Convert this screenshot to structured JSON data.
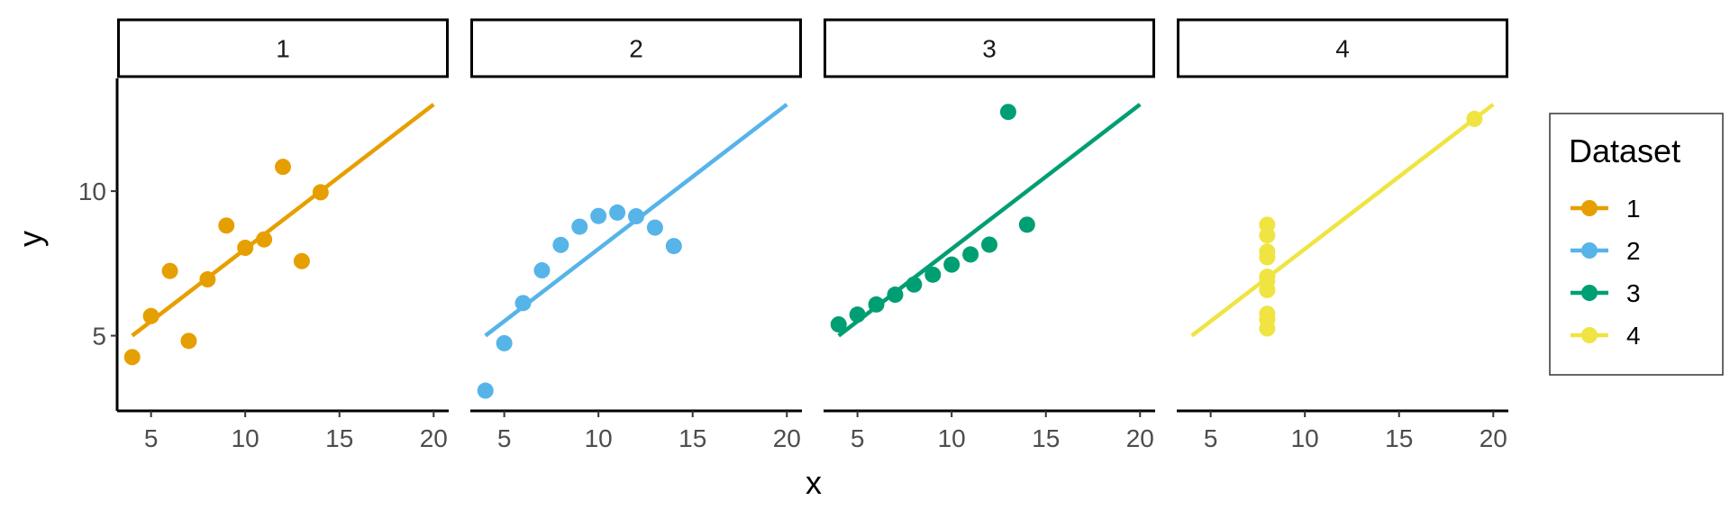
{
  "chart_data": {
    "type": "scatter",
    "layout": "facets",
    "facet_labels": [
      "1",
      "2",
      "3",
      "4"
    ],
    "xlabel": "x",
    "ylabel": "y",
    "xlim": [
      3.2,
      20.8
    ],
    "ylim": [
      2.4,
      13.9
    ],
    "x_ticks": [
      5,
      10,
      15,
      20
    ],
    "y_ticks": [
      5,
      10
    ],
    "grid": false,
    "legend": {
      "title": "Dataset",
      "position": "right"
    },
    "series": [
      {
        "name": "1",
        "color": "#E69F00",
        "x": [
          10,
          8,
          13,
          9,
          11,
          14,
          6,
          4,
          12,
          7,
          5
        ],
        "y": [
          8.04,
          6.95,
          7.58,
          8.81,
          8.33,
          9.96,
          7.24,
          4.26,
          10.84,
          4.82,
          5.68
        ],
        "fit": {
          "x": [
            4,
            20
          ],
          "y": [
            5.0,
            13.0
          ]
        }
      },
      {
        "name": "2",
        "color": "#56B4E9",
        "x": [
          10,
          8,
          13,
          9,
          11,
          14,
          6,
          4,
          12,
          7,
          5
        ],
        "y": [
          9.14,
          8.14,
          8.74,
          8.77,
          9.26,
          8.1,
          6.13,
          3.1,
          9.13,
          7.26,
          4.74
        ],
        "fit": {
          "x": [
            4,
            20
          ],
          "y": [
            5.0,
            13.0
          ]
        }
      },
      {
        "name": "3",
        "color": "#009E73",
        "x": [
          10,
          8,
          13,
          9,
          11,
          14,
          6,
          4,
          12,
          7,
          5
        ],
        "y": [
          7.46,
          6.77,
          12.74,
          7.11,
          7.81,
          8.84,
          6.08,
          5.39,
          8.15,
          6.42,
          5.73
        ],
        "fit": {
          "x": [
            4,
            20
          ],
          "y": [
            5.0,
            13.0
          ]
        }
      },
      {
        "name": "4",
        "color": "#F0E442",
        "x": [
          8,
          8,
          8,
          8,
          8,
          8,
          8,
          19,
          8,
          8,
          8
        ],
        "y": [
          6.58,
          5.76,
          7.71,
          8.84,
          8.47,
          7.04,
          5.25,
          12.5,
          5.56,
          7.91,
          6.89
        ],
        "fit": {
          "x": [
            4,
            20
          ],
          "y": [
            5.0,
            13.0
          ]
        }
      }
    ]
  }
}
